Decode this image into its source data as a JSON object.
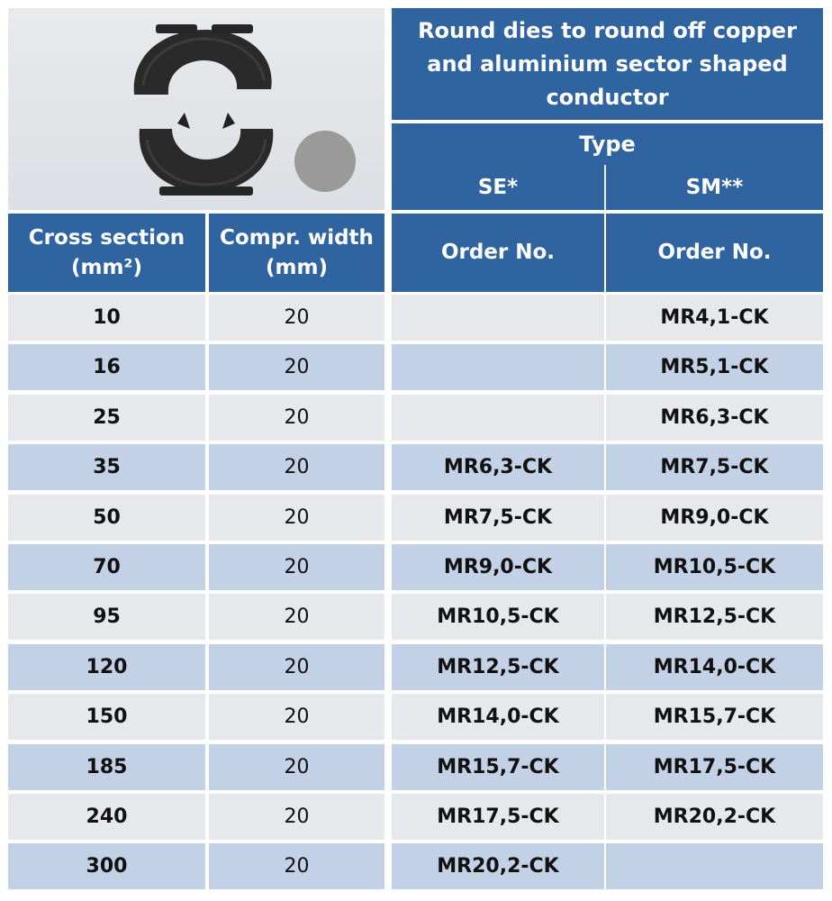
{
  "header": {
    "title": "Round dies to round off copper and aluminium sector shaped conductor",
    "type_label": "Type",
    "se_label": "SE*",
    "sm_label": "SM**"
  },
  "columns": {
    "cross_section": "Cross section (mm²)",
    "compr_width": "Compr. width (mm)",
    "se_order": "Order No.",
    "sm_order": "Order No."
  },
  "photo": {
    "die_color": "#2a2a2a",
    "circle_color": "#9a9a9a",
    "icons": [
      "round-die-top-half-icon",
      "round-die-bottom-half-icon",
      "grey-circle-icon"
    ]
  },
  "rows": [
    {
      "cross": "10",
      "width": "20",
      "se": "",
      "sm": "MR4,1-CK"
    },
    {
      "cross": "16",
      "width": "20",
      "se": "",
      "sm": "MR5,1-CK"
    },
    {
      "cross": "25",
      "width": "20",
      "se": "",
      "sm": "MR6,3-CK"
    },
    {
      "cross": "35",
      "width": "20",
      "se": "MR6,3-CK",
      "sm": "MR7,5-CK"
    },
    {
      "cross": "50",
      "width": "20",
      "se": "MR7,5-CK",
      "sm": "MR9,0-CK"
    },
    {
      "cross": "70",
      "width": "20",
      "se": "MR9,0-CK",
      "sm": "MR10,5-CK"
    },
    {
      "cross": "95",
      "width": "20",
      "se": "MR10,5-CK",
      "sm": "MR12,5-CK"
    },
    {
      "cross": "120",
      "width": "20",
      "se": "MR12,5-CK",
      "sm": "MR14,0-CK"
    },
    {
      "cross": "150",
      "width": "20",
      "se": "MR14,0-CK",
      "sm": "MR15,7-CK"
    },
    {
      "cross": "185",
      "width": "20",
      "se": "MR15,7-CK",
      "sm": "MR17,5-CK"
    },
    {
      "cross": "240",
      "width": "20",
      "se": "MR17,5-CK",
      "sm": "MR20,2-CK"
    },
    {
      "cross": "300",
      "width": "20",
      "se": "MR20,2-CK",
      "sm": ""
    }
  ]
}
